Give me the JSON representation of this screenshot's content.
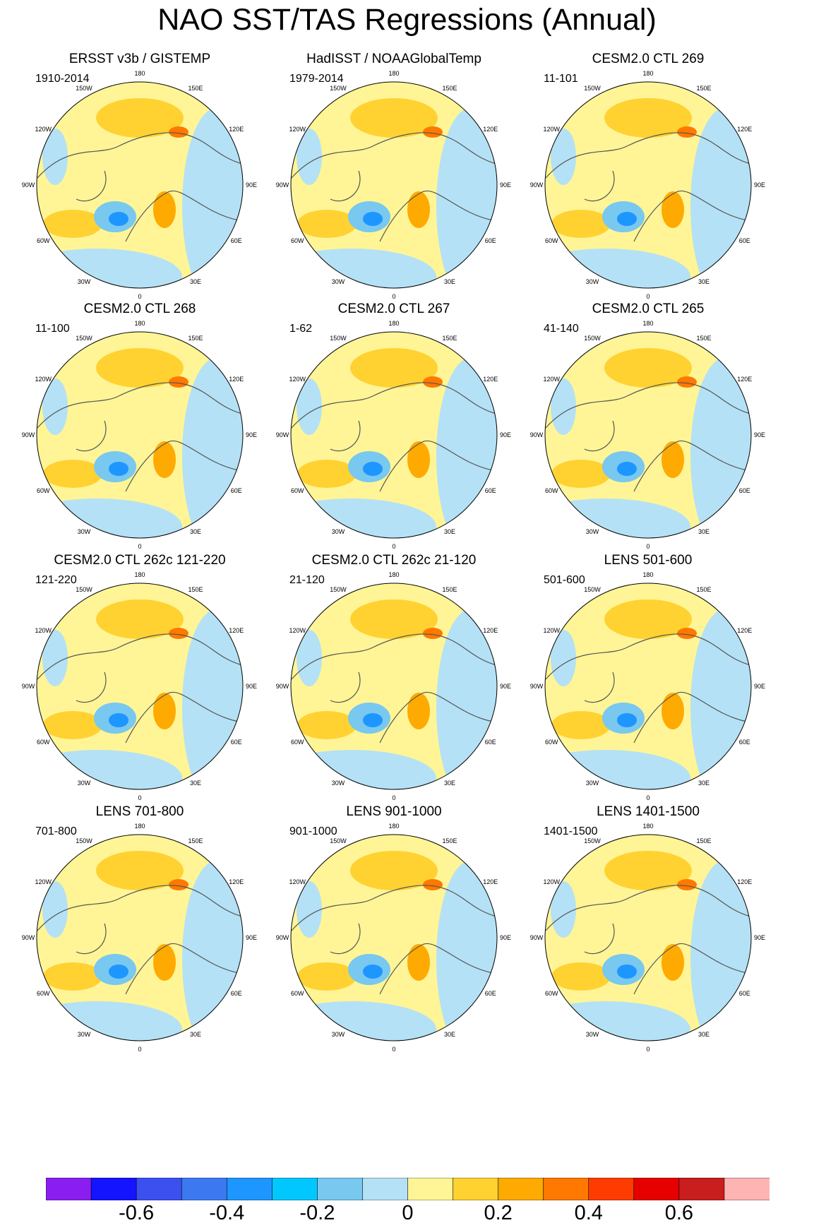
{
  "title": "NAO SST/TAS Regressions (Annual)",
  "longitude_labels": [
    "180",
    "150E",
    "120E",
    "90E",
    "60E",
    "30E",
    "0",
    "30W",
    "60W",
    "90W",
    "120W",
    "150W"
  ],
  "panels": [
    {
      "title": "ERSST v3b / GISTEMP",
      "period": "1910-2014"
    },
    {
      "title": "HadISST / NOAAGlobalTemp",
      "period": "1979-2014"
    },
    {
      "title": "CESM2.0 CTL 269",
      "period": "11-101"
    },
    {
      "title": "CESM2.0 CTL 268",
      "period": "11-100"
    },
    {
      "title": "CESM2.0 CTL 267",
      "period": "1-62"
    },
    {
      "title": "CESM2.0 CTL 265",
      "period": "41-140"
    },
    {
      "title": "CESM2.0 CTL 262c 121-220",
      "period": "121-220"
    },
    {
      "title": "CESM2.0 CTL 262c 21-120",
      "period": "21-120"
    },
    {
      "title": "LENS 501-600",
      "period": "501-600"
    },
    {
      "title": "LENS 701-800",
      "period": "701-800"
    },
    {
      "title": "LENS 901-1000",
      "period": "901-1000"
    },
    {
      "title": "LENS 1401-1500",
      "period": "1401-1500"
    }
  ],
  "colorbar": {
    "colors": [
      "#8a1ef0",
      "#1414ff",
      "#3c50f0",
      "#3c78f0",
      "#1e96ff",
      "#00c8ff",
      "#78c8f0",
      "#b4e1f5",
      "#fff596",
      "#ffd232",
      "#ffaa00",
      "#ff7800",
      "#ff3c00",
      "#e60000",
      "#c81e1e",
      "#ffb4b4"
    ],
    "tick_labels": [
      "-0.6",
      "-0.4",
      "-0.2",
      "0",
      "0.2",
      "0.4",
      "0.6"
    ]
  }
}
